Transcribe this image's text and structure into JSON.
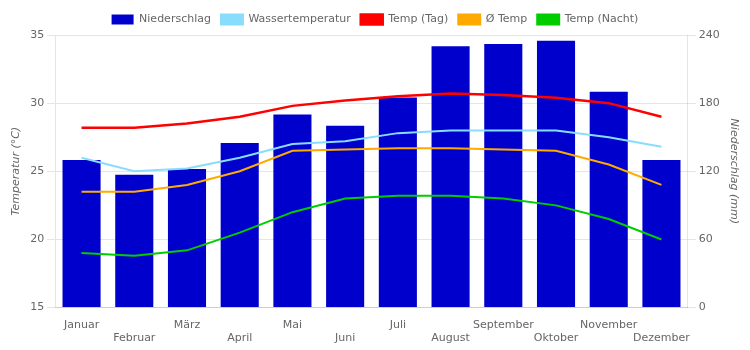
{
  "chart_data": {
    "type": "bar",
    "categories": [
      "Januar",
      "Februar",
      "März",
      "April",
      "Mai",
      "Juni",
      "Juli",
      "August",
      "September",
      "Oktober",
      "November",
      "Dezember"
    ],
    "series": [
      {
        "name": "Niederschlag",
        "type": "bar",
        "axis": "y2",
        "color": "#0000cc",
        "values": [
          130,
          117,
          122,
          145,
          170,
          160,
          185,
          230,
          232,
          235,
          190,
          130
        ]
      },
      {
        "name": "Wassertemperatur",
        "type": "line",
        "color": "#88ddff",
        "values": [
          26.0,
          25.0,
          25.2,
          26.0,
          27.0,
          27.2,
          27.8,
          28.0,
          28.0,
          28.0,
          27.5,
          26.8
        ]
      },
      {
        "name": "Temp (Tag)",
        "type": "line",
        "color": "#ff0000",
        "values": [
          28.2,
          28.2,
          28.5,
          29.0,
          29.8,
          30.2,
          30.5,
          30.7,
          30.6,
          30.4,
          30.0,
          29.0
        ]
      },
      {
        "name": "Ø Temp",
        "type": "line",
        "color": "#ffaa00",
        "values": [
          23.5,
          23.5,
          24.0,
          25.0,
          26.5,
          26.6,
          26.7,
          26.7,
          26.6,
          26.5,
          25.5,
          24.0
        ]
      },
      {
        "name": "Temp (Nacht)",
        "type": "line",
        "color": "#00cc00",
        "values": [
          19.0,
          18.8,
          19.2,
          20.5,
          22.0,
          23.0,
          23.2,
          23.2,
          23.0,
          22.5,
          21.5,
          20.0
        ]
      }
    ],
    "ylabel": "Temperatur (°C)",
    "y2label": "Niederschlag (mm)",
    "ylim": [
      15,
      35
    ],
    "yticks": [
      15,
      20,
      25,
      30,
      35
    ],
    "y2lim": [
      0,
      240
    ],
    "y2ticks": [
      0,
      60,
      120,
      180,
      240
    ],
    "grid": true,
    "legend": "top"
  }
}
